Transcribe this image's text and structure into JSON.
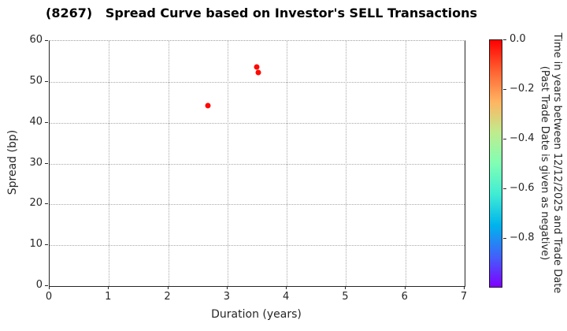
{
  "title": "(8267)   Spread Curve based on Investor's SELL Transactions",
  "chart_data": {
    "type": "scatter",
    "title": "(8267)   Spread Curve based on Investor's SELL Transactions",
    "xlabel": "Duration (years)",
    "ylabel": "Spread (bp)",
    "xlim": [
      0,
      7
    ],
    "ylim": [
      0,
      60
    ],
    "xticks": [
      0,
      1,
      2,
      3,
      4,
      5,
      6,
      7
    ],
    "yticks": [
      0,
      10,
      20,
      30,
      40,
      50,
      60
    ],
    "grid": true,
    "grid_style": "dotted",
    "points": [
      {
        "x": 3.49,
        "y": 53.6,
        "color_value": 0.0,
        "color": "#ff0800"
      },
      {
        "x": 3.52,
        "y": 52.3,
        "color_value": 0.0,
        "color": "#ff0800"
      },
      {
        "x": 2.67,
        "y": 44.1,
        "color_value": 0.0,
        "color": "#ff0800"
      }
    ],
    "marker_size_px": 7,
    "colorbar": {
      "label_line1": "Time in years between 12/12/2025 and Trade Date",
      "label_line2": "(Past Trade Date is given as negative)",
      "tick_labels": [
        "0.0",
        "−0.2",
        "−0.4",
        "−0.6",
        "−0.8"
      ],
      "tick_values": [
        0,
        -0.2,
        -0.4,
        -0.6,
        -0.8
      ],
      "range": [
        0,
        -1
      ],
      "colormap": "rainbow-reversed",
      "gradient_stops": [
        "#ff0000",
        "#ff6232",
        "#ffb462",
        "#bfec8e",
        "#80ffb4",
        "#40ecd4",
        "#00b4ec",
        "#4062fa",
        "#8000ff"
      ]
    }
  }
}
